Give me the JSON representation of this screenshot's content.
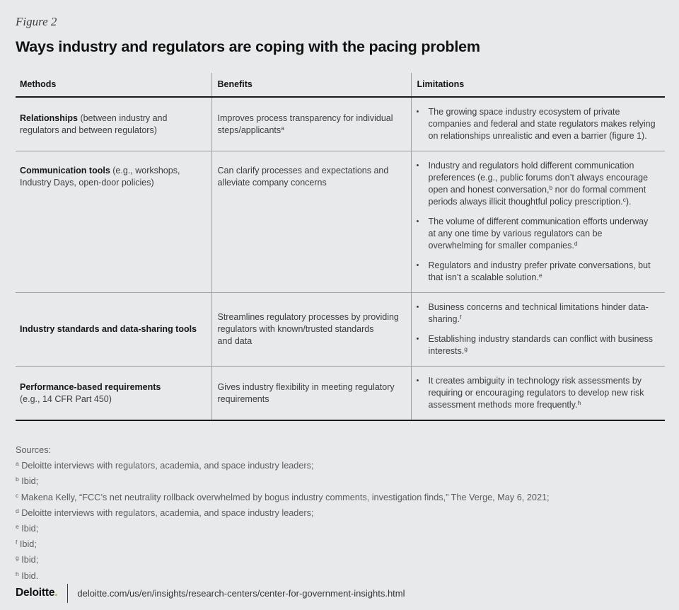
{
  "figure_label": "Figure 2",
  "title": "Ways industry and regulators are coping with the pacing problem",
  "table": {
    "headers": [
      "Methods",
      "Benefits",
      "Limitations"
    ],
    "rows": [
      {
        "method_bold": "Relationships",
        "method_rest": " (between industry and regulators and between regulators)",
        "benefit": "Improves process transparency for individual steps/applicants^a",
        "limitations": [
          "The growing space industry ecosystem of private companies and federal and state regulators makes relying on relationships unrealistic and even a barrier (figure 1)."
        ]
      },
      {
        "method_bold": "Communication tools",
        "method_rest": " (e.g., workshops, Industry Days, open-door policies)",
        "benefit": "Can clarify processes and expectations and alleviate company concerns",
        "limitations": [
          "Industry and regulators hold different communication preferences (e.g., public forums don’t always encourage open and honest conversation,^b nor do formal comment periods always illicit thoughtful policy prescription.^c).",
          "The volume of different communication efforts underway at any one time by various regulators can be overwhelming for smaller companies.^d",
          "Regulators and industry prefer private conversations, but that isn’t a scalable solution.^e"
        ]
      },
      {
        "method_bold": "Industry standards and data-sharing tools",
        "method_rest": "",
        "benefit": "Streamlines regulatory processes by providing regulators with known/trusted standards and data",
        "limitations": [
          "Business concerns and technical limitations hinder data-sharing.^f",
          "Establishing industry standards can conflict with business interests.^g"
        ]
      },
      {
        "method_bold": "Performance-based requirements",
        "method_rest": "(e.g., 14 CFR Part 450)",
        "benefit": "Gives industry flexibility in meeting regulatory requirements",
        "limitations": [
          "It creates ambiguity in technology risk assessments by requiring or encouraging regulators to develop new risk assessment methods more frequently.^h"
        ]
      }
    ]
  },
  "sources": {
    "label": "Sources:",
    "items": [
      "^a Deloitte interviews with regulators, academia, and space industry leaders;",
      "^b Ibid;",
      "^c Makena Kelly, “FCC’s net neutrality rollback overwhelmed by bogus industry comments, investigation finds,” The Verge, May 6, 2021;",
      "^d Deloitte interviews with regulators, academia, and space industry leaders;",
      "^e Ibid;",
      "^f Ibid;",
      "^g Ibid;",
      "^h Ibid."
    ]
  },
  "footer": {
    "brand": "Deloitte",
    "brand_dot": ".",
    "url": "deloitte.com/us/en/insights/research-centers/center-for-government-insights.html"
  },
  "colors": {
    "background": "#e8e9ea",
    "accent_green": "#86bc25",
    "rule_dark": "#1a1a1a",
    "rule_gray": "#a0a0a0"
  }
}
